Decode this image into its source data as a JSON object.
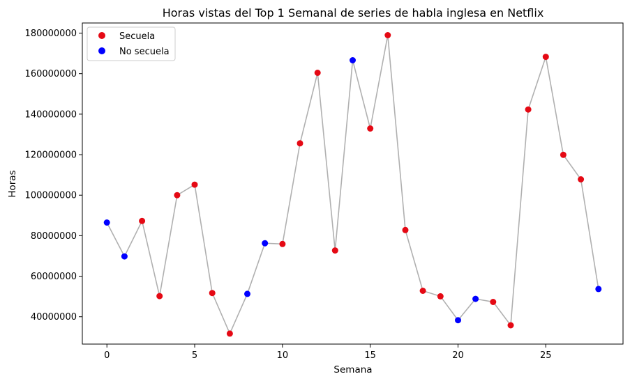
{
  "chart_data": {
    "type": "scatter",
    "title": "Horas vistas del Top 1 Semanal de series de habla inglesa en Netflix",
    "xlabel": "Semana",
    "ylabel": "Horas",
    "xlim": [
      -1.4,
      29.4
    ],
    "ylim": [
      26500000,
      185000000
    ],
    "xticks": [
      0,
      5,
      10,
      15,
      20,
      25
    ],
    "yticks": [
      40000000,
      60000000,
      80000000,
      100000000,
      120000000,
      140000000,
      160000000,
      180000000
    ],
    "x": [
      0,
      1,
      2,
      3,
      4,
      5,
      6,
      7,
      8,
      9,
      10,
      11,
      12,
      13,
      14,
      15,
      16,
      17,
      18,
      19,
      20,
      21,
      22,
      23,
      24,
      25,
      26,
      27,
      28
    ],
    "y": [
      86500000,
      69800000,
      87300000,
      50200000,
      100000000,
      105200000,
      51700000,
      31700000,
      51300000,
      76300000,
      75900000,
      125600000,
      160400000,
      72700000,
      166600000,
      132900000,
      179000000,
      82800000,
      52800000,
      50100000,
      38300000,
      48800000,
      47300000,
      35800000,
      142300000,
      168300000,
      119900000,
      107800000,
      53700000
    ],
    "series": [
      {
        "name": "Secuela",
        "color": "#e50914",
        "x": [
          2,
          3,
          4,
          5,
          6,
          7,
          10,
          11,
          12,
          13,
          15,
          16,
          17,
          18,
          19,
          22,
          23,
          24,
          25,
          26,
          27
        ]
      },
      {
        "name": "No secuela",
        "color": "#0000ff",
        "x": [
          0,
          1,
          8,
          9,
          14,
          20,
          21,
          28
        ]
      }
    ],
    "line_color": "#b0b0b0",
    "legend_position": "upper-left",
    "grid": false
  }
}
